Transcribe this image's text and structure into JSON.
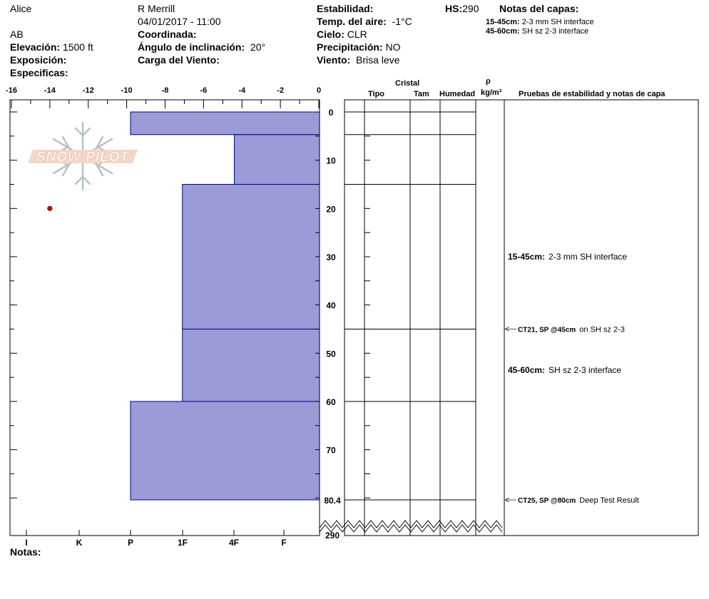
{
  "header": {
    "observer": "Alice",
    "location": "R Merrill",
    "datetime": "04/01/2017 - 11:00",
    "region": "AB",
    "elevation_label": "Elevación:",
    "elevation_value": "1500 ft",
    "coord_label": "Coordinada:",
    "aspect_label": "Exposición:",
    "slope_label": "Ángulo de inclinación:",
    "slope_value": "20°",
    "wind_load_label": "Carga del Viento:",
    "specifics_label": "Especificas:",
    "stability_label": "Estabilidad:",
    "air_temp_label": "Temp. del aire:",
    "air_temp_value": "-1°C",
    "sky_label": "Cielo:",
    "sky_value": "CLR",
    "precip_label": "Precipitación:",
    "precip_value": "NO",
    "wind_label": "Viento:",
    "wind_value": "Brisa leve",
    "hs_label": "HS:",
    "hs_value": "290",
    "layer_notes_title": "Notas del capas:",
    "layer_notes": [
      {
        "range": "15-45cm:",
        "text": "2-3 mm SH interface"
      },
      {
        "range": "45-60cm:",
        "text": "SH sz 2-3 interface"
      }
    ]
  },
  "logo": {
    "text": "SNOW PILOT"
  },
  "notes_label": "Notas:",
  "columns": {
    "crystal": "Cristal",
    "type": "Tipo",
    "size": "Tam",
    "moisture": "Humedad",
    "rho": "ρ",
    "density_unit": "kg/m³",
    "tests_title": "Pruebas de estabilidad y notas de capa"
  },
  "chart_data": {
    "type": "bar",
    "temperature_axis": {
      "ticks": [
        -16,
        -14,
        -12,
        -10,
        -8,
        -6,
        -4,
        -2,
        0
      ],
      "range": [
        -16,
        0
      ]
    },
    "depth_axis": {
      "ticks": [
        0,
        10,
        20,
        30,
        40,
        50,
        60,
        70
      ],
      "bottom_label": "80.4",
      "total_label": "290",
      "range": [
        0,
        80.4
      ]
    },
    "hardness_axis": {
      "ticks": [
        "I",
        "K",
        "P",
        "1F",
        "4F",
        "F"
      ]
    },
    "hardness_layers": [
      {
        "top": 0,
        "bottom": 4.7,
        "temp_extent": -9.8
      },
      {
        "top": 4.7,
        "bottom": 15,
        "temp_extent": -4.4
      },
      {
        "top": 15,
        "bottom": 45,
        "temp_extent": -7.1
      },
      {
        "top": 45,
        "bottom": 60,
        "temp_extent": -7.1
      },
      {
        "top": 60,
        "bottom": 80.4,
        "temp_extent": -9.8
      }
    ],
    "layer_boundaries": [
      0,
      4.7,
      15,
      45,
      60,
      80.4
    ],
    "temperature_points": [
      {
        "depth": 20,
        "temp": -14
      }
    ],
    "colors": {
      "fill": "#9b9bd7",
      "stroke": "#00008b",
      "temp_point": "#cc0000"
    },
    "annotations": [
      {
        "depth": 30,
        "bold": "15-45cm:",
        "text": "2-3 mm SH interface",
        "arrow": false
      },
      {
        "depth": 45,
        "bold": "CT21, SP @45cm",
        "text": "on SH sz 2-3",
        "arrow": true
      },
      {
        "depth": 53.5,
        "bold": "45-60cm:",
        "text": "SH sz 2-3 interface",
        "arrow": false
      },
      {
        "depth": 80.4,
        "bold": "CT25, SP @80cm",
        "text": "Deep Test Result",
        "arrow": true
      }
    ]
  }
}
